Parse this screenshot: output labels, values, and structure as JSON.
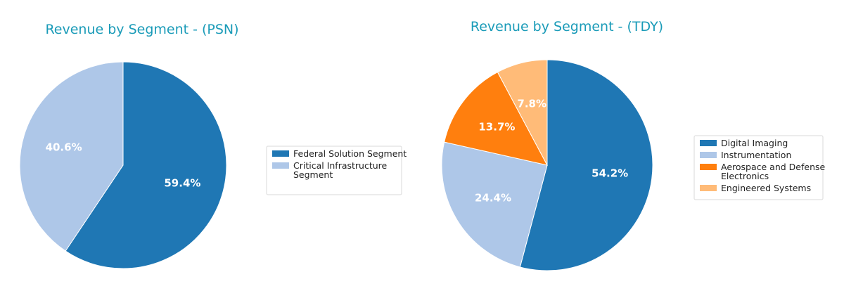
{
  "chart_data": [
    {
      "type": "pie",
      "title": "Revenue by Segment - (PSN)",
      "slices": [
        {
          "label": "Federal Solution Segment",
          "legend_lines": [
            "Federal Solution Segment"
          ],
          "value": 59.4,
          "display": "59.4%",
          "color": "#1f77b4"
        },
        {
          "label": "Critical Infrastructure Segment",
          "legend_lines": [
            "Critical Infrastructure",
            "Segment"
          ],
          "value": 40.6,
          "display": "40.6%",
          "color": "#aec7e8"
        }
      ],
      "legend_placement": "right"
    },
    {
      "type": "pie",
      "title": "Revenue by Segment - (TDY)",
      "slices": [
        {
          "label": "Digital Imaging",
          "legend_lines": [
            "Digital Imaging"
          ],
          "value": 54.2,
          "display": "54.2%",
          "color": "#1f77b4"
        },
        {
          "label": "Instrumentation",
          "legend_lines": [
            "Instrumentation"
          ],
          "value": 24.4,
          "display": "24.4%",
          "color": "#aec7e8"
        },
        {
          "label": "Aerospace and Defense Electronics",
          "legend_lines": [
            "Aerospace and Defense",
            "Electronics"
          ],
          "value": 13.7,
          "display": "13.7%",
          "color": "#ff7f0e"
        },
        {
          "label": "Engineered Systems",
          "legend_lines": [
            "Engineered Systems"
          ],
          "value": 7.8,
          "display": "7.8%",
          "color": "#ffbb78"
        }
      ],
      "legend_placement": "right"
    }
  ]
}
